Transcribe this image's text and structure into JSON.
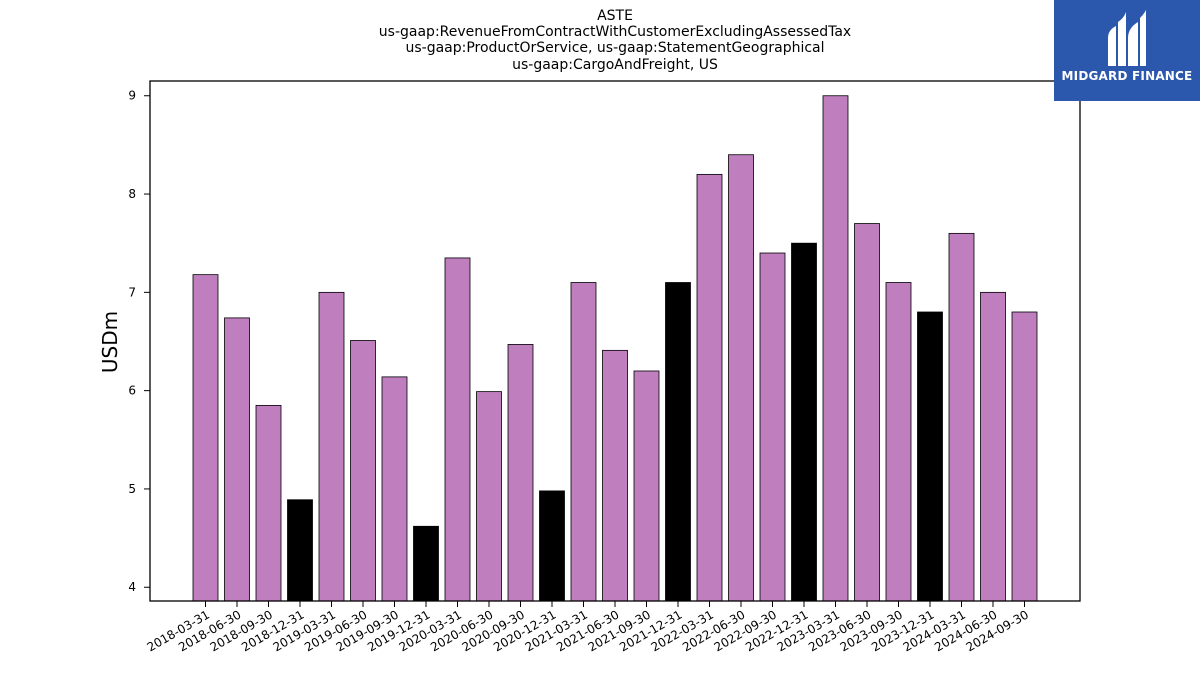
{
  "chart_data": {
    "type": "bar",
    "title_lines": [
      "ASTE",
      "us-gaap:RevenueFromContractWithCustomerExcludingAssessedTax",
      "us-gaap:ProductOrService, us-gaap:StatementGeographical",
      "us-gaap:CargoAndFreight, US"
    ],
    "ylabel": "USDm",
    "xlabel": "",
    "ylim": [
      3.86,
      9.15
    ],
    "yticks": [
      4,
      5,
      6,
      7,
      8,
      9
    ],
    "categories": [
      "2018-03-31",
      "2018-06-30",
      "2018-09-30",
      "2018-12-31",
      "2019-03-31",
      "2019-06-30",
      "2019-09-30",
      "2019-12-31",
      "2020-03-31",
      "2020-06-30",
      "2020-09-30",
      "2020-12-31",
      "2021-03-31",
      "2021-06-30",
      "2021-09-30",
      "2021-12-31",
      "2022-03-31",
      "2022-06-30",
      "2022-09-30",
      "2022-12-31",
      "2023-03-31",
      "2023-06-30",
      "2023-09-30",
      "2023-12-31",
      "2024-03-31",
      "2024-06-30",
      "2024-09-30"
    ],
    "values": [
      7.18,
      6.74,
      5.85,
      4.89,
      7.0,
      6.51,
      6.14,
      4.62,
      7.35,
      5.99,
      6.47,
      4.98,
      7.1,
      6.41,
      6.2,
      7.1,
      8.2,
      8.4,
      7.4,
      7.5,
      9.0,
      7.7,
      7.1,
      6.8,
      7.6,
      7.0,
      6.8
    ],
    "bar_colors": [
      "#bf7fbf",
      "#bf7fbf",
      "#bf7fbf",
      "#000000",
      "#bf7fbf",
      "#bf7fbf",
      "#bf7fbf",
      "#000000",
      "#bf7fbf",
      "#bf7fbf",
      "#bf7fbf",
      "#000000",
      "#bf7fbf",
      "#bf7fbf",
      "#bf7fbf",
      "#000000",
      "#bf7fbf",
      "#bf7fbf",
      "#bf7fbf",
      "#000000",
      "#bf7fbf",
      "#bf7fbf",
      "#bf7fbf",
      "#000000",
      "#bf7fbf",
      "#bf7fbf",
      "#bf7fbf"
    ],
    "grid": false,
    "legend": "none"
  },
  "logo": {
    "text": "MIDGARD FINANCE",
    "background": "#2b57ad",
    "icon": "midgard-logo-icon"
  }
}
